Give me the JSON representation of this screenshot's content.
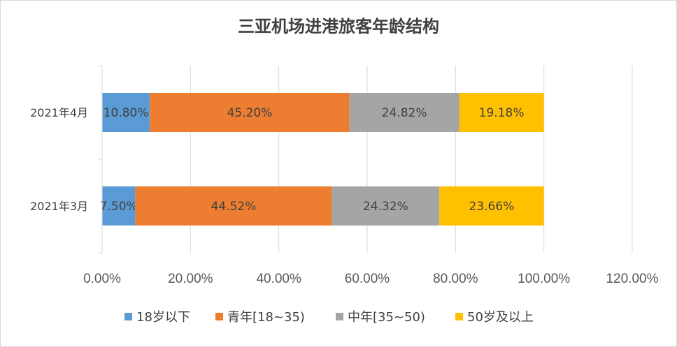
{
  "chart_data": {
    "type": "bar",
    "orientation": "horizontal",
    "stacked": true,
    "title": "三亚机场进港旅客年龄结构",
    "categories": [
      "2021年4月",
      "2021年3月"
    ],
    "series": [
      {
        "name": "18岁以下",
        "values": [
          10.8,
          7.5
        ],
        "labels": [
          "10.80%",
          "7.50%"
        ],
        "color": "#5B9BD5"
      },
      {
        "name": "青年[18~35)",
        "values": [
          45.2,
          44.52
        ],
        "labels": [
          "45.20%",
          "44.52%"
        ],
        "color": "#ED7D31"
      },
      {
        "name": "中年[35~50)",
        "values": [
          24.82,
          24.32
        ],
        "labels": [
          "24.82%",
          "24.32%"
        ],
        "color": "#A5A5A5"
      },
      {
        "name": "50岁及以上",
        "values": [
          19.18,
          23.66
        ],
        "labels": [
          "19.18%",
          "23.66%"
        ],
        "color": "#FFC000"
      }
    ],
    "xlim": [
      0,
      120
    ],
    "x_ticks": [
      0,
      20,
      40,
      60,
      80,
      100,
      120
    ],
    "x_tick_labels": [
      "0.00%",
      "20.00%",
      "40.00%",
      "60.00%",
      "80.00%",
      "100.00%",
      "120.00%"
    ],
    "grid": "vertical",
    "legend_position": "bottom"
  }
}
